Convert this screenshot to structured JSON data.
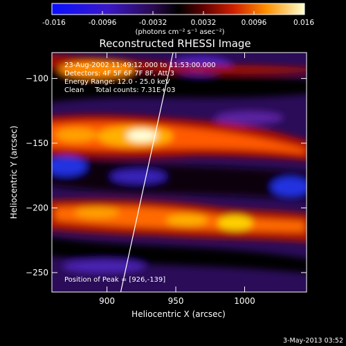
{
  "colorbar": {
    "ticks": [
      "-0.016",
      "-0.0096",
      "-0.0032",
      "0.0032",
      "0.0096",
      "0.016"
    ],
    "tick_values": [
      -0.016,
      -0.0096,
      -0.0032,
      0.0032,
      0.0096,
      0.016
    ],
    "range": [
      -0.016,
      0.016
    ],
    "label": "(photons cm⁻² s⁻¹ asec⁻²)"
  },
  "annotations": {
    "time_range": "23-Aug-2002 11:49:12.000 to 11:53:00.000",
    "detectors": "Detectors: 4F 5F 6F 7F 8F, Att 3",
    "energy": "Energy Range: 12.0 - 25.0 keV",
    "clean": "Clean     Total counts: 7.31E+03",
    "peak": "Position of Peak = [926,-139]"
  },
  "footer_date": "3-May-2013 03:52",
  "colors": {
    "background": "#000000",
    "colormap": [
      "#0000ff",
      "#5a1aa8",
      "#000000",
      "#8a0000",
      "#ff3a00",
      "#ffb000",
      "#ffffe0"
    ]
  },
  "chart_data": {
    "type": "heatmap",
    "title": "Reconstructed RHESSI Image",
    "xlabel": "Heliocentric X (arcsec)",
    "ylabel": "Heliocentric Y (arcsec)",
    "xlim": [
      860,
      1045
    ],
    "ylim": [
      -265,
      -80
    ],
    "xticks": [
      900,
      950,
      1000
    ],
    "yticks": [
      -100,
      -150,
      -200,
      -250
    ],
    "xtick_labels": [
      "900",
      "950",
      "1000"
    ],
    "ytick_labels": [
      "−100",
      "−150",
      "−200",
      "−250"
    ],
    "peak": [
      926,
      -139
    ],
    "limb_line": [
      [
        910,
        -265
      ],
      [
        948,
        -80
      ]
    ],
    "bright_bands": [
      {
        "y_center": -140,
        "x_from": 860,
        "x_to": 1045,
        "peak_x": 926
      },
      {
        "y_center": -210,
        "x_from": 860,
        "x_to": 1045,
        "peak_x": 990
      }
    ]
  }
}
